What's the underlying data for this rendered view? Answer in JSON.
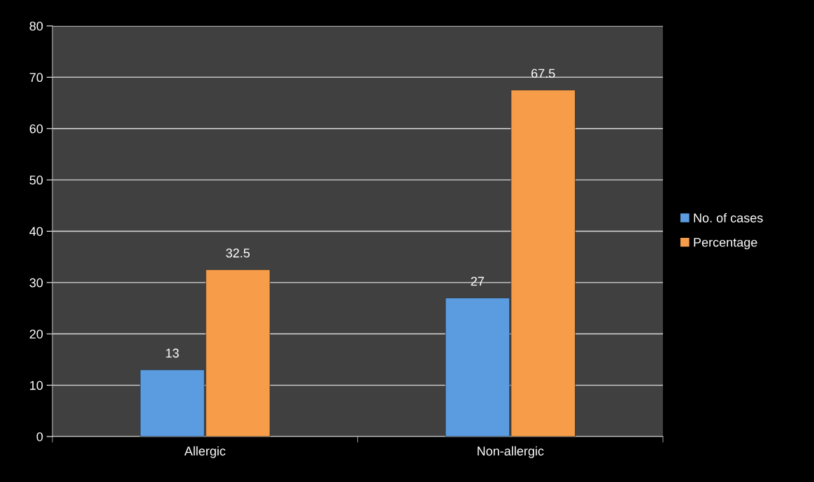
{
  "chart_data": {
    "type": "bar",
    "categories": [
      "Allergic",
      "Non-allergic"
    ],
    "series": [
      {
        "name": "No. of cases",
        "color": "#5b9be0",
        "values": [
          13,
          27
        ]
      },
      {
        "name": "Percentage",
        "color": "#f79d4a",
        "values": [
          32.5,
          67.5
        ]
      }
    ],
    "ylim": [
      0,
      80
    ],
    "yticks": [
      0,
      10,
      20,
      30,
      40,
      50,
      60,
      70,
      80
    ],
    "grid": "y",
    "legend": "right",
    "data_labels": true
  }
}
